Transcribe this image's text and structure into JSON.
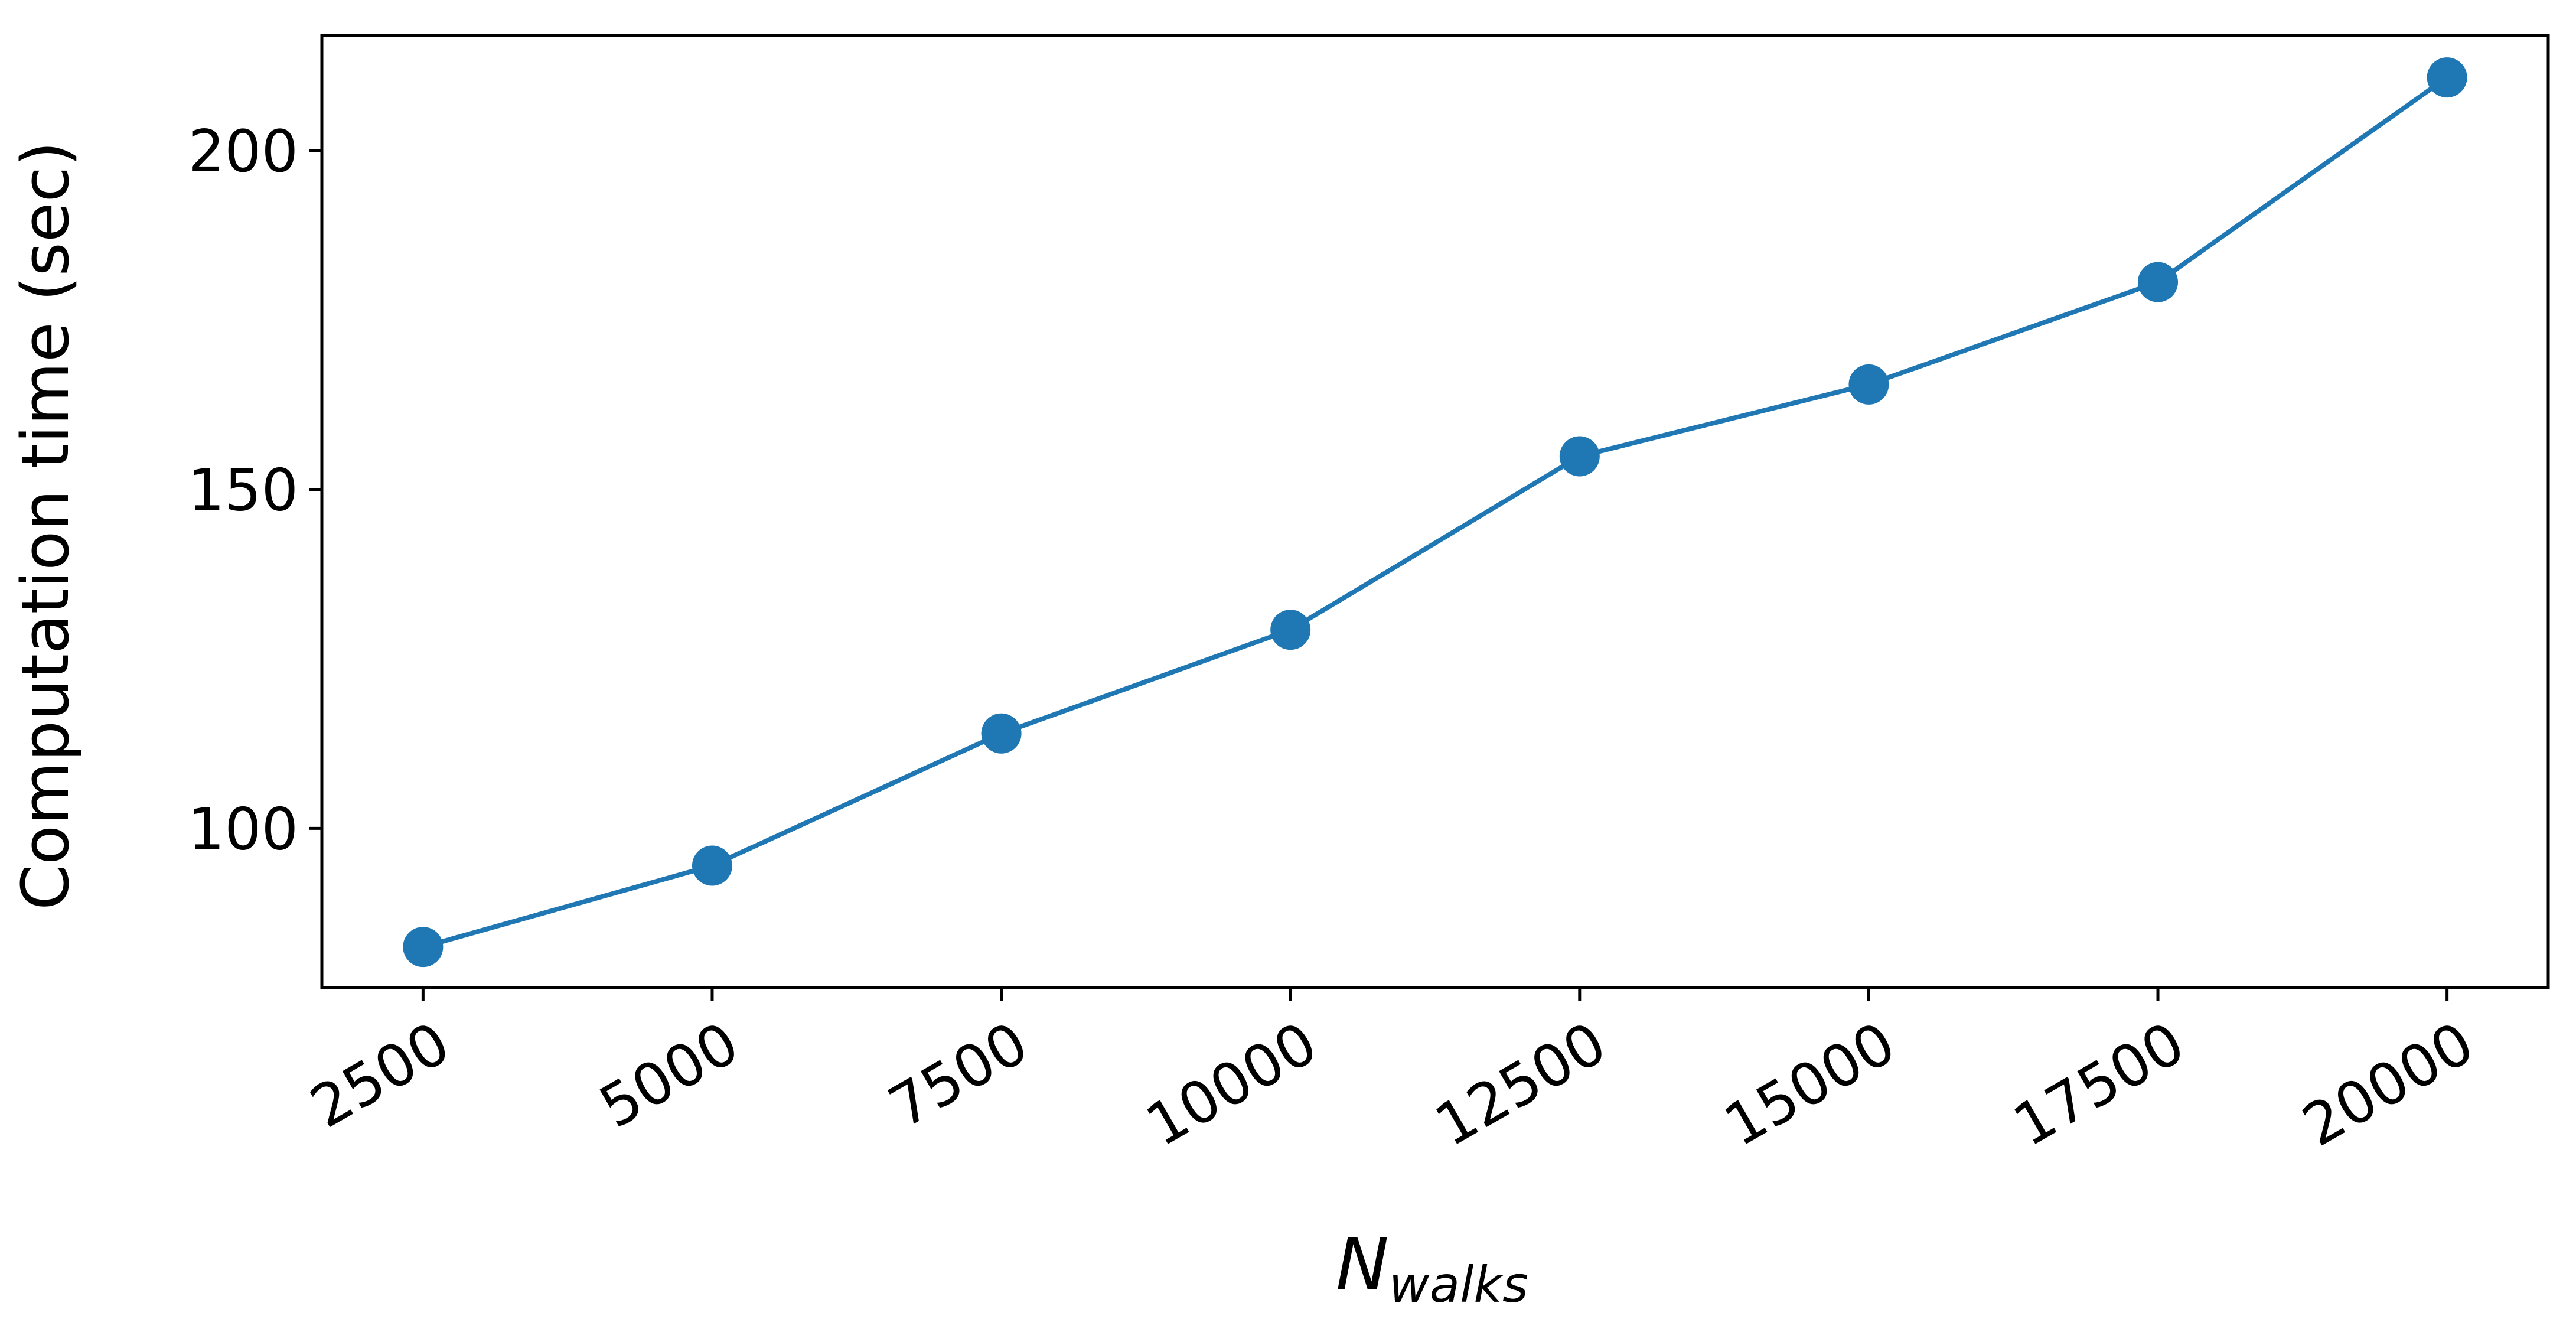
{
  "chart_data": {
    "type": "line",
    "title": "",
    "xlabel": "N",
    "xlabel_sub": "walks",
    "ylabel": "Computation time (sec)",
    "x": [
      2500,
      5000,
      7500,
      10000,
      12500,
      15000,
      17500,
      20000
    ],
    "series": [
      {
        "values": [
          82.5,
          94.5,
          114,
          129.3,
          154.9,
          165.5,
          180.6,
          210.8
        ]
      }
    ],
    "xlim": [
      1625,
      20875
    ],
    "ylim": [
      76.5,
      217
    ]
  },
  "x_ticks": [
    {
      "value": 2500,
      "label": "2500"
    },
    {
      "value": 5000,
      "label": "5000"
    },
    {
      "value": 7500,
      "label": "7500"
    },
    {
      "value": 10000,
      "label": "10000"
    },
    {
      "value": 12500,
      "label": "12500"
    },
    {
      "value": 15000,
      "label": "15000"
    },
    {
      "value": 17500,
      "label": "17500"
    },
    {
      "value": 20000,
      "label": "20000"
    }
  ],
  "y_ticks": [
    {
      "value": 100,
      "label": "100"
    },
    {
      "value": 150,
      "label": "150"
    },
    {
      "value": 200,
      "label": "200"
    }
  ],
  "colors": {
    "series": "#1f77b4",
    "axis": "#000000"
  }
}
